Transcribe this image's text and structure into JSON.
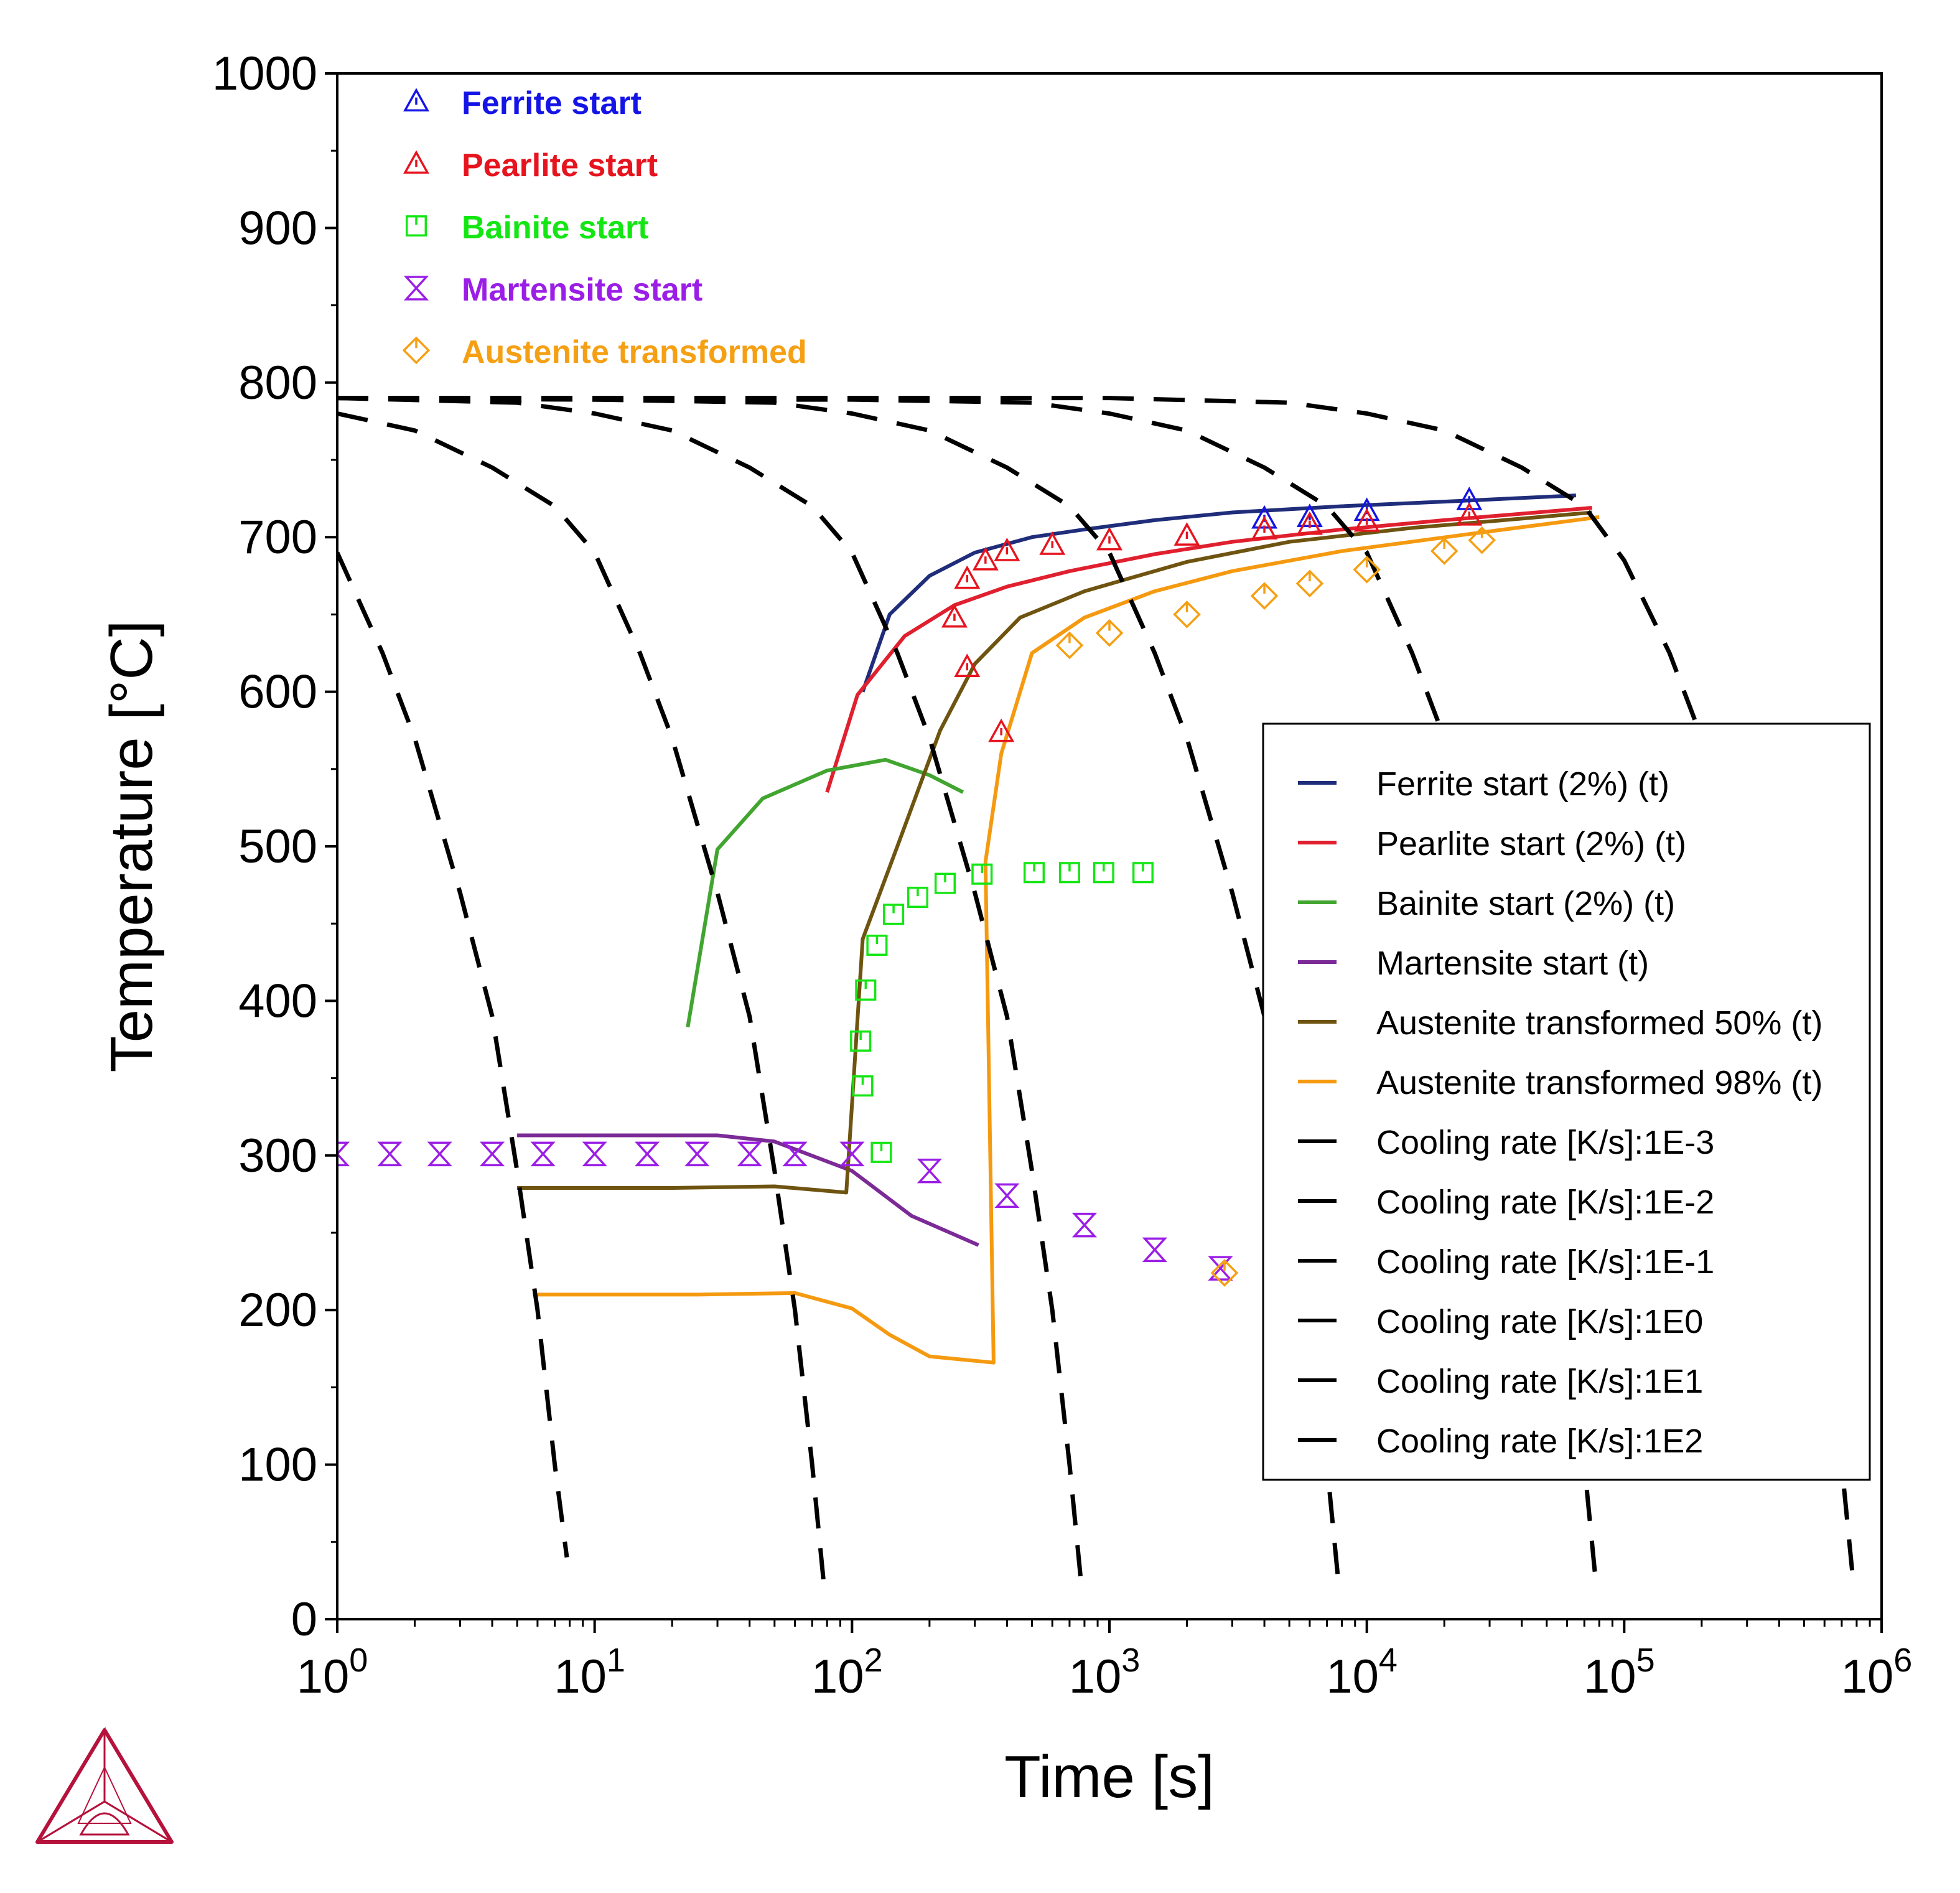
{
  "chart_data": {
    "type": "line",
    "xlabel": "Time [s]",
    "ylabel": "Temperature [°C]",
    "x_scale": "log",
    "xlim": [
      1,
      1000000
    ],
    "ylim": [
      0,
      1000
    ],
    "x_ticks": [
      {
        "value": 1,
        "base": "10",
        "exp": "0"
      },
      {
        "value": 10,
        "base": "10",
        "exp": "1"
      },
      {
        "value": 100,
        "base": "10",
        "exp": "2"
      },
      {
        "value": 1000,
        "base": "10",
        "exp": "3"
      },
      {
        "value": 10000,
        "base": "10",
        "exp": "4"
      },
      {
        "value": 100000,
        "base": "10",
        "exp": "5"
      },
      {
        "value": 1000000,
        "base": "10",
        "exp": "6"
      }
    ],
    "y_ticks": [
      {
        "value": 0,
        "label": "0"
      },
      {
        "value": 100,
        "label": "100"
      },
      {
        "value": 200,
        "label": "200"
      },
      {
        "value": 300,
        "label": "300"
      },
      {
        "value": 400,
        "label": "400"
      },
      {
        "value": 500,
        "label": "500"
      },
      {
        "value": 600,
        "label": "600"
      },
      {
        "value": 700,
        "label": "700"
      },
      {
        "value": 800,
        "label": "800"
      },
      {
        "value": 900,
        "label": "900"
      },
      {
        "value": 1000,
        "label": "1000"
      }
    ],
    "grid": false,
    "legend_placement": "center-right",
    "lines": [
      {
        "name": "Ferrite start (2%) (t)",
        "color": "#1f2d7a",
        "dash": false,
        "points": [
          [
            110,
            600
          ],
          [
            140,
            650
          ],
          [
            200,
            675
          ],
          [
            300,
            690
          ],
          [
            500,
            700
          ],
          [
            800,
            705
          ],
          [
            1500,
            711
          ],
          [
            3000,
            716
          ],
          [
            8000,
            720
          ],
          [
            20000,
            723
          ],
          [
            65000,
            727
          ]
        ]
      },
      {
        "name": "Pearlite start (2%) (t)",
        "color": "#e0202f",
        "dash": false,
        "points": [
          [
            80,
            535
          ],
          [
            105,
            598
          ],
          [
            160,
            636
          ],
          [
            250,
            656
          ],
          [
            400,
            668
          ],
          [
            700,
            678
          ],
          [
            1500,
            689
          ],
          [
            3000,
            697
          ],
          [
            8000,
            705
          ],
          [
            20000,
            711
          ],
          [
            75000,
            719
          ]
        ]
      },
      {
        "name": "Bainite start (2%) (t)",
        "color": "#41a530",
        "dash": false,
        "points": [
          [
            23,
            383
          ],
          [
            30,
            498
          ],
          [
            45,
            531
          ],
          [
            80,
            549
          ],
          [
            135,
            556
          ],
          [
            200,
            546
          ],
          [
            270,
            535
          ]
        ]
      },
      {
        "name": "Martensite start (t)",
        "color": "#7b2a96",
        "dash": false,
        "points": [
          [
            5,
            313
          ],
          [
            15,
            313
          ],
          [
            30,
            313
          ],
          [
            50,
            309
          ],
          [
            100,
            290
          ],
          [
            170,
            261
          ],
          [
            310,
            242
          ]
        ]
      },
      {
        "name": "Austenite transformed 50% (t)",
        "color": "#6e5410",
        "dash": false,
        "points": [
          [
            5,
            279
          ],
          [
            20,
            279
          ],
          [
            50,
            280
          ],
          [
            95,
            276
          ],
          [
            110,
            440
          ],
          [
            150,
            500
          ],
          [
            220,
            575
          ],
          [
            300,
            618
          ],
          [
            450,
            648
          ],
          [
            800,
            665
          ],
          [
            2000,
            684
          ],
          [
            5000,
            697
          ],
          [
            15000,
            706
          ],
          [
            40000,
            712
          ],
          [
            75000,
            716
          ]
        ]
      },
      {
        "name": "Austenite transformed 98% (t)",
        "color": "#f59a10",
        "dash": false,
        "points": [
          [
            6,
            210
          ],
          [
            25,
            210
          ],
          [
            60,
            211
          ],
          [
            100,
            201
          ],
          [
            140,
            184
          ],
          [
            200,
            170
          ],
          [
            355,
            166
          ],
          [
            330,
            490
          ],
          [
            380,
            560
          ],
          [
            500,
            625
          ],
          [
            800,
            648
          ],
          [
            1500,
            665
          ],
          [
            3000,
            678
          ],
          [
            8000,
            691
          ],
          [
            25000,
            702
          ],
          [
            80000,
            713
          ]
        ]
      },
      {
        "name": "Cooling rate [K/s]:1E-3",
        "color": "#000000",
        "dash": true,
        "points": [
          [
            1,
            790
          ],
          [
            10,
            790
          ],
          [
            1000,
            790
          ],
          [
            5000,
            787
          ],
          [
            10000,
            780
          ],
          [
            20000,
            769
          ],
          [
            40000,
            745
          ],
          [
            70000,
            720
          ],
          [
            100000,
            685
          ],
          [
            150000,
            625
          ],
          [
            200000,
            570
          ],
          [
            300000,
            470
          ],
          [
            400000,
            390
          ],
          [
            500000,
            290
          ],
          [
            600000,
            200
          ],
          [
            700000,
            100
          ],
          [
            780000,
            20
          ]
        ]
      },
      {
        "name": "Cooling rate [K/s]:1E-2",
        "color": "#000000",
        "dash": true,
        "points": [
          [
            1,
            790
          ],
          [
            10,
            789
          ],
          [
            100,
            789
          ],
          [
            500,
            787
          ],
          [
            1000,
            780
          ],
          [
            2000,
            769
          ],
          [
            4000,
            745
          ],
          [
            7000,
            720
          ],
          [
            10000,
            690
          ],
          [
            15000,
            625
          ],
          [
            20000,
            570
          ],
          [
            30000,
            470
          ],
          [
            40000,
            390
          ],
          [
            50000,
            290
          ],
          [
            60000,
            200
          ],
          [
            70000,
            100
          ],
          [
            78000,
            20
          ]
        ]
      },
      {
        "name": "Cooling rate [K/s]:1E-1",
        "color": "#000000",
        "dash": true,
        "points": [
          [
            1,
            790
          ],
          [
            10,
            789
          ],
          [
            50,
            787
          ],
          [
            100,
            780
          ],
          [
            200,
            769
          ],
          [
            400,
            745
          ],
          [
            700,
            720
          ],
          [
            1000,
            690
          ],
          [
            1500,
            625
          ],
          [
            2000,
            570
          ],
          [
            3000,
            470
          ],
          [
            4000,
            390
          ],
          [
            5000,
            290
          ],
          [
            6000,
            200
          ],
          [
            7000,
            100
          ],
          [
            7800,
            20
          ]
        ]
      },
      {
        "name": "Cooling rate [K/s]:1E0",
        "color": "#000000",
        "dash": true,
        "points": [
          [
            1,
            790
          ],
          [
            5,
            787
          ],
          [
            10,
            780
          ],
          [
            20,
            769
          ],
          [
            40,
            745
          ],
          [
            70,
            720
          ],
          [
            100,
            690
          ],
          [
            150,
            625
          ],
          [
            200,
            570
          ],
          [
            300,
            470
          ],
          [
            400,
            390
          ],
          [
            500,
            290
          ],
          [
            600,
            200
          ],
          [
            700,
            100
          ],
          [
            780,
            20
          ]
        ]
      },
      {
        "name": "Cooling rate [K/s]:1E1",
        "color": "#000000",
        "dash": true,
        "points": [
          [
            1,
            780
          ],
          [
            2,
            769
          ],
          [
            4,
            745
          ],
          [
            7,
            720
          ],
          [
            10,
            690
          ],
          [
            15,
            625
          ],
          [
            20,
            570
          ],
          [
            30,
            470
          ],
          [
            40,
            390
          ],
          [
            50,
            290
          ],
          [
            60,
            200
          ],
          [
            70,
            100
          ],
          [
            78,
            20
          ]
        ]
      },
      {
        "name": "Cooling rate [K/s]:1E2",
        "color": "#000000",
        "dash": true,
        "points": [
          [
            1,
            690
          ],
          [
            1.5,
            625
          ],
          [
            2,
            570
          ],
          [
            3,
            470
          ],
          [
            4,
            390
          ],
          [
            5,
            290
          ],
          [
            6,
            200
          ],
          [
            7,
            100
          ],
          [
            7.8,
            40
          ]
        ]
      }
    ],
    "markers": [
      {
        "name": "Ferrite start",
        "symbol": "triangle",
        "color": "#1414e6",
        "points": [
          [
            4000,
            712
          ],
          [
            6000,
            713
          ],
          [
            10000,
            717
          ],
          [
            25000,
            724
          ]
        ]
      },
      {
        "name": "Pearlite start",
        "symbol": "triangle",
        "color": "#e6141e",
        "points": [
          [
            250,
            648
          ],
          [
            280,
            673
          ],
          [
            330,
            685
          ],
          [
            400,
            691
          ],
          [
            600,
            695
          ],
          [
            1000,
            698
          ],
          [
            2000,
            701
          ],
          [
            4000,
            705
          ],
          [
            6000,
            708
          ],
          [
            10000,
            710
          ],
          [
            25000,
            714
          ],
          [
            280,
            616
          ],
          [
            380,
            574
          ]
        ]
      },
      {
        "name": "Bainite start",
        "symbol": "square",
        "color": "#14e614",
        "points": [
          [
            110,
            345
          ],
          [
            108,
            374
          ],
          [
            113,
            407
          ],
          [
            125,
            436
          ],
          [
            145,
            456
          ],
          [
            180,
            467
          ],
          [
            230,
            476
          ],
          [
            320,
            482
          ],
          [
            510,
            483
          ],
          [
            700,
            483
          ],
          [
            950,
            483
          ],
          [
            1350,
            483
          ],
          [
            130,
            302
          ]
        ]
      },
      {
        "name": "Martensite start",
        "symbol": "hourglass",
        "color": "#9b1ee6",
        "points": [
          [
            1,
            301
          ],
          [
            1.6,
            301
          ],
          [
            2.5,
            301
          ],
          [
            4,
            301
          ],
          [
            6.3,
            301
          ],
          [
            10,
            301
          ],
          [
            16,
            301
          ],
          [
            25,
            301
          ],
          [
            40,
            301
          ],
          [
            60,
            301
          ],
          [
            100,
            301
          ],
          [
            200,
            290
          ],
          [
            400,
            274
          ],
          [
            800,
            255
          ],
          [
            1500,
            239
          ],
          [
            2700,
            227
          ]
        ]
      },
      {
        "name": "Austenite transformed",
        "symbol": "diamond",
        "color": "#f5a014",
        "points": [
          [
            2800,
            224
          ],
          [
            700,
            630
          ],
          [
            1000,
            638
          ],
          [
            2000,
            650
          ],
          [
            4000,
            662
          ],
          [
            6000,
            670
          ],
          [
            10000,
            679
          ],
          [
            20000,
            691
          ],
          [
            28000,
            698
          ]
        ]
      }
    ],
    "legend_entries": [
      {
        "label": "Ferrite start (2%) (t)",
        "color": "#1f2d7a"
      },
      {
        "label": "Pearlite start (2%) (t)",
        "color": "#e0202f"
      },
      {
        "label": "Bainite start (2%) (t)",
        "color": "#41a530"
      },
      {
        "label": "Martensite start (t)",
        "color": "#7b2a96"
      },
      {
        "label": "Austenite transformed 50% (t)",
        "color": "#6e5410"
      },
      {
        "label": "Austenite transformed 98% (t)",
        "color": "#f59a10"
      },
      {
        "label": "Cooling rate [K/s]:1E-3",
        "color": "#000000"
      },
      {
        "label": "Cooling rate [K/s]:1E-2",
        "color": "#000000"
      },
      {
        "label": "Cooling rate [K/s]:1E-1",
        "color": "#000000"
      },
      {
        "label": "Cooling rate [K/s]:1E0",
        "color": "#000000"
      },
      {
        "label": "Cooling rate [K/s]:1E1",
        "color": "#000000"
      },
      {
        "label": "Cooling rate [K/s]:1E2",
        "color": "#000000"
      }
    ],
    "marker_legend_entries": [
      {
        "label": "Ferrite start",
        "symbol": "triangle",
        "color": "#1414e6"
      },
      {
        "label": "Pearlite start",
        "symbol": "triangle",
        "color": "#e6141e"
      },
      {
        "label": "Bainite start",
        "symbol": "square",
        "color": "#14e614"
      },
      {
        "label": "Martensite start",
        "symbol": "hourglass",
        "color": "#9b1ee6"
      },
      {
        "label": "Austenite transformed",
        "symbol": "diamond",
        "color": "#f5a014"
      }
    ]
  },
  "logo": {
    "icon": "thermo-calc-logo-icon",
    "color": "#b5123c"
  }
}
